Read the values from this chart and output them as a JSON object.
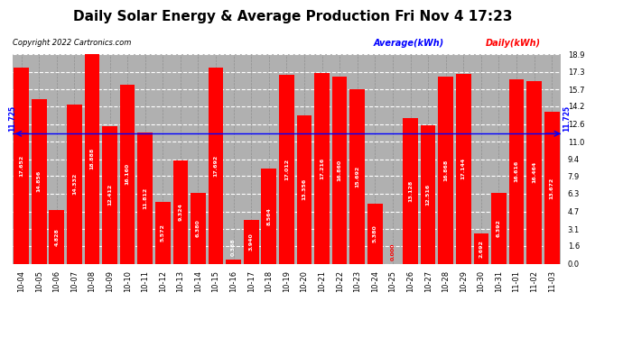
{
  "title": "Daily Solar Energy & Average Production Fri Nov 4 17:23",
  "copyright": "Copyright 2022 Cartronics.com",
  "legend_average": "Average(kWh)",
  "legend_daily": "Daily(kWh)",
  "average_value": 11.725,
  "categories": [
    "10-04",
    "10-05",
    "10-06",
    "10-07",
    "10-08",
    "10-09",
    "10-10",
    "10-11",
    "10-12",
    "10-13",
    "10-14",
    "10-15",
    "10-16",
    "10-17",
    "10-18",
    "10-19",
    "10-20",
    "10-21",
    "10-22",
    "10-23",
    "10-24",
    "10-25",
    "10-26",
    "10-27",
    "10-28",
    "10-29",
    "10-30",
    "10-31",
    "11-01",
    "11-02",
    "11-03"
  ],
  "values": [
    17.652,
    14.856,
    4.828,
    14.332,
    18.888,
    12.412,
    16.16,
    11.812,
    5.572,
    9.324,
    6.38,
    17.692,
    0.388,
    3.94,
    8.564,
    17.012,
    13.356,
    17.216,
    16.86,
    15.692,
    5.38,
    0.0,
    13.128,
    12.516,
    16.868,
    17.144,
    2.692,
    6.392,
    16.616,
    16.464,
    13.672
  ],
  "bar_color": "#ff0000",
  "avg_line_color": "#0000ff",
  "background_color": "#ffffff",
  "plot_bg_color": "#b0b0b0",
  "ylim": [
    0,
    18.9
  ],
  "yticks": [
    0.0,
    1.6,
    3.1,
    4.7,
    6.3,
    7.9,
    9.4,
    11.0,
    12.6,
    14.2,
    15.7,
    17.3,
    18.9
  ],
  "title_fontsize": 11,
  "bar_label_fontsize": 4.5,
  "avg_label": "11.725",
  "tick_fontsize": 6,
  "copyright_fontsize": 6,
  "legend_fontsize": 7
}
